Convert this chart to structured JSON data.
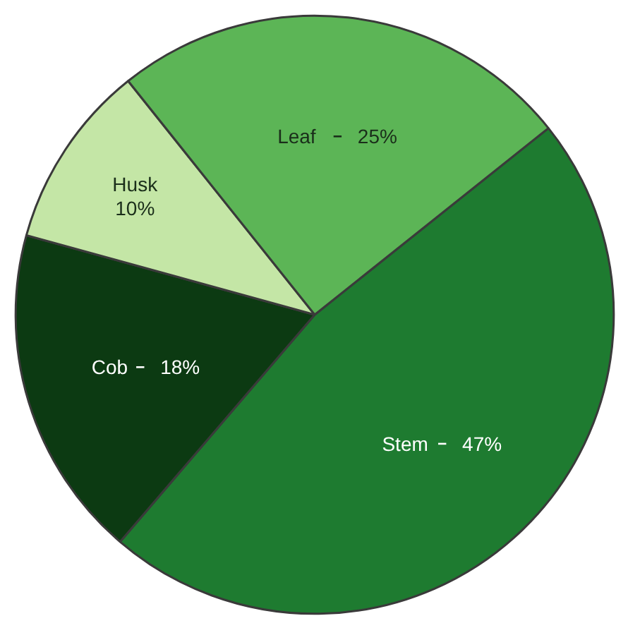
{
  "chart_data": {
    "type": "pie",
    "categories": [
      "Stem",
      "Cob",
      "Husk",
      "Leaf"
    ],
    "values": [
      47,
      18,
      10,
      25
    ],
    "colors": [
      "#1e7b30",
      "#0c3a12",
      "#c4e6a6",
      "#5cb556"
    ],
    "value_labels": [
      "47%",
      "18%",
      "10%",
      "25%"
    ]
  }
}
